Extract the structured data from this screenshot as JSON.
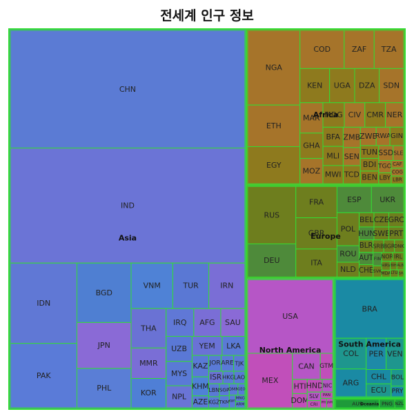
{
  "chart_data": {
    "type": "treemap",
    "title": "전세계 인구 정보",
    "continents": [
      {
        "name": "Asia",
        "color": "#5a78d6",
        "countries": [
          {
            "label": "CHN",
            "value": 1398,
            "color": "#5b7bd4"
          },
          {
            "label": "IND",
            "value": 1366,
            "color": "#6b74d6"
          },
          {
            "label": "IDN",
            "value": 271,
            "color": "#6078d5"
          },
          {
            "label": "PAK",
            "value": 217,
            "color": "#5a7bd8"
          },
          {
            "label": "BGD",
            "value": 163,
            "color": "#4f7fd2"
          },
          {
            "label": "JPN",
            "value": 126,
            "color": "#8a6ad6"
          },
          {
            "label": "PHL",
            "value": 108,
            "color": "#5a7ed6"
          },
          {
            "label": "VNM",
            "value": 96,
            "color": "#4f82d6"
          },
          {
            "label": "TUR",
            "value": 83,
            "color": "#5a78d4"
          },
          {
            "label": "IRN",
            "value": 83,
            "color": "#7a6ed6"
          },
          {
            "label": "THA",
            "value": 70,
            "color": "#6a72d4"
          },
          {
            "label": "KOR",
            "value": 52,
            "color": "#4f7fd6"
          },
          {
            "label": "MMR",
            "value": 54,
            "color": "#7a6ed6"
          },
          {
            "label": "IRQ",
            "value": 39,
            "color": "#6078d6"
          },
          {
            "label": "SAU",
            "value": 34,
            "color": "#8a6ad6"
          },
          {
            "label": "NPL",
            "value": 29,
            "color": "#6a74d6"
          },
          {
            "label": "AFG",
            "value": 38,
            "color": "#7a6ed6"
          },
          {
            "label": "UZB",
            "value": 33,
            "color": "#5a78d6"
          },
          {
            "label": "MYS",
            "value": 32,
            "color": "#5a7ad6"
          },
          {
            "label": "YEM",
            "value": 29,
            "color": "#6a72d6"
          },
          {
            "label": "LKA",
            "value": 22,
            "color": "#5a7ad6"
          },
          {
            "label": "KAZ",
            "value": 18,
            "color": "#5a7ad6"
          },
          {
            "label": "KHM",
            "value": 16,
            "color": "#4f82d6"
          },
          {
            "label": "AZE",
            "value": 10,
            "color": "#5a7ad6"
          },
          {
            "label": "TJK",
            "value": 9,
            "color": "#5a7ad6"
          },
          {
            "label": "ISR",
            "value": 9,
            "color": "#6a72d6"
          },
          {
            "label": "HKG",
            "value": 7,
            "color": "#5a7ad6"
          },
          {
            "label": "LAO",
            "value": 7,
            "color": "#5a7ad6"
          },
          {
            "label": "JOR",
            "value": 10,
            "color": "#5a7ad6"
          },
          {
            "label": "KGZ",
            "value": 6,
            "color": "#5a7ad6"
          },
          {
            "label": "SGP",
            "value": 6,
            "color": "#5a7ad6"
          },
          {
            "label": "GEO",
            "value": 4,
            "color": "#5a7ad6"
          },
          {
            "label": "ARE",
            "value": 10,
            "color": "#5a7ad6"
          },
          {
            "label": "TKM",
            "value": 6,
            "color": "#5a7ad6"
          },
          {
            "label": "LBN",
            "value": 7,
            "color": "#5a7ad6"
          },
          {
            "label": "MNG",
            "value": 3,
            "color": "#5a7ad6"
          },
          {
            "label": "ARM",
            "value": 3,
            "color": "#5a7ad6"
          },
          {
            "label": "OMN",
            "value": 5,
            "color": "#5a7ad6"
          },
          {
            "label": "KWT",
            "value": 4,
            "color": "#5a7ad6"
          }
        ]
      },
      {
        "name": "Europe",
        "color": "#6f8a2a",
        "countries": [
          {
            "label": "RUS",
            "value": 144,
            "color": "#6e7e1e"
          },
          {
            "label": "DEU",
            "value": 83,
            "color": "#4e8a3a"
          },
          {
            "label": "FRA",
            "value": 67,
            "color": "#6e7e1e"
          },
          {
            "label": "GBR",
            "value": 67,
            "color": "#6e7e1e"
          },
          {
            "label": "ITA",
            "value": 60,
            "color": "#6e7e1e"
          },
          {
            "label": "UKR",
            "value": 44,
            "color": "#4e8a3a"
          },
          {
            "label": "ESP",
            "value": 47,
            "color": "#4e8a3a"
          },
          {
            "label": "POL",
            "value": 38,
            "color": "#6e7e1e"
          },
          {
            "label": "ROU",
            "value": 19,
            "color": "#4e8a3a"
          },
          {
            "label": "NLD",
            "value": 17,
            "color": "#6e7e1e"
          },
          {
            "label": "BEL",
            "value": 11,
            "color": "#6e7e1e"
          },
          {
            "label": "CZE",
            "value": 11,
            "color": "#6e7e1e"
          },
          {
            "label": "HUN",
            "value": 10,
            "color": "#4e8a3a"
          },
          {
            "label": "BLR",
            "value": 9,
            "color": "#6e7e1e"
          },
          {
            "label": "SWE",
            "value": 10,
            "color": "#6e7e1e"
          },
          {
            "label": "AUT",
            "value": 9,
            "color": "#4e8a3a"
          },
          {
            "label": "CHE",
            "value": 9,
            "color": "#6e7e1e"
          },
          {
            "label": "DNK",
            "value": 6,
            "color": "#6e7e1e"
          },
          {
            "label": "SVK",
            "value": 5,
            "color": "#6e7e1e"
          },
          {
            "label": "FIN",
            "value": 6,
            "color": "#4e8a3a"
          },
          {
            "label": "NOR",
            "value": 5,
            "color": "#6e7e1e"
          },
          {
            "label": "MDA",
            "value": 3,
            "color": "#6e7e1e"
          },
          {
            "label": "IRL",
            "value": 5,
            "color": "#6e7e1e"
          },
          {
            "label": "SRB",
            "value": 7,
            "color": "#6e7e1e"
          },
          {
            "label": "BIH",
            "value": 3,
            "color": "#6e7e1e"
          },
          {
            "label": "ALB",
            "value": 3,
            "color": "#6e7e1e"
          },
          {
            "label": "LTU",
            "value": 3,
            "color": "#6e7e1e"
          },
          {
            "label": "BGR",
            "value": 7,
            "color": "#6e7e1e"
          },
          {
            "label": "HRV",
            "value": 4,
            "color": "#6e7e1e"
          },
          {
            "label": "LVA",
            "value": 2,
            "color": "#6e7e1e"
          },
          {
            "label": "GRC",
            "value": 11,
            "color": "#6e7e1e"
          },
          {
            "label": "PRT",
            "value": 10,
            "color": "#6e7e1e"
          }
        ]
      },
      {
        "name": "North America",
        "color": "#b656c6",
        "countries": [
          {
            "label": "USA",
            "value": 328,
            "color": "#b656c6"
          },
          {
            "label": "MEX",
            "value": 128,
            "color": "#c14fba"
          },
          {
            "label": "CAN",
            "value": 38,
            "color": "#b656c6"
          },
          {
            "label": "GTM",
            "value": 17,
            "color": "#c14fba"
          },
          {
            "label": "HTI",
            "value": 11,
            "color": "#c14fba"
          },
          {
            "label": "SLV",
            "value": 6,
            "color": "#b656c6"
          },
          {
            "label": "CRI",
            "value": 5,
            "color": "#c14fba"
          },
          {
            "label": "PRI",
            "value": 3,
            "color": "#c14fba"
          },
          {
            "label": "DOM",
            "value": 11,
            "color": "#c14fba"
          },
          {
            "label": "HND",
            "value": 10,
            "color": "#c14fba"
          },
          {
            "label": "NIC",
            "value": 7,
            "color": "#b656c6"
          },
          {
            "label": "PAN",
            "value": 4,
            "color": "#c14fba"
          },
          {
            "label": "JAM",
            "value": 3,
            "color": "#c14fba"
          }
        ]
      },
      {
        "name": "Africa",
        "color": "#a6742a",
        "countries": [
          {
            "label": "NGA",
            "value": 201,
            "color": "#a6742a"
          },
          {
            "label": "ETH",
            "value": 112,
            "color": "#a6742a"
          },
          {
            "label": "EGY",
            "value": 100,
            "color": "#8e7a1e"
          },
          {
            "label": "COD",
            "value": 87,
            "color": "#a6742a"
          },
          {
            "label": "ZAF",
            "value": 59,
            "color": "#a6742a"
          },
          {
            "label": "TZA",
            "value": 58,
            "color": "#a6742a"
          },
          {
            "label": "KEN",
            "value": 52,
            "color": "#8e7a1e"
          },
          {
            "label": "MAR",
            "value": 36,
            "color": "#a6742a"
          },
          {
            "label": "DZA",
            "value": 43,
            "color": "#8e7a1e"
          },
          {
            "label": "UGA",
            "value": 44,
            "color": "#8e7a1e"
          },
          {
            "label": "SDN",
            "value": 43,
            "color": "#a6742a"
          },
          {
            "label": "GHA",
            "value": 30,
            "color": "#8e7a1e"
          },
          {
            "label": "MOZ",
            "value": 30,
            "color": "#a6742a"
          },
          {
            "label": "MDG",
            "value": 27,
            "color": "#8e7a1e"
          },
          {
            "label": "CIV",
            "value": 26,
            "color": "#a6742a"
          },
          {
            "label": "CMR",
            "value": 26,
            "color": "#8e7a1e"
          },
          {
            "label": "BFA",
            "value": 20,
            "color": "#8e7a1e"
          },
          {
            "label": "NER",
            "value": 23,
            "color": "#a6742a"
          },
          {
            "label": "MWI",
            "value": 19,
            "color": "#8e7a1e"
          },
          {
            "label": "SEN",
            "value": 16,
            "color": "#a6742a"
          },
          {
            "label": "MLI",
            "value": 20,
            "color": "#8e7a1e"
          },
          {
            "label": "ZWE",
            "value": 15,
            "color": "#a6742a"
          },
          {
            "label": "TUN",
            "value": 12,
            "color": "#8e7a1e"
          },
          {
            "label": "RWA",
            "value": 13,
            "color": "#a6742a"
          },
          {
            "label": "TCD",
            "value": 16,
            "color": "#8e7a1e"
          },
          {
            "label": "ZMB",
            "value": 18,
            "color": "#a6742a"
          },
          {
            "label": "GIN",
            "value": 13,
            "color": "#8e7a1e"
          },
          {
            "label": "SLE",
            "value": 8,
            "color": "#a6742a"
          },
          {
            "label": "LBY",
            "value": 7,
            "color": "#8e7a1e"
          },
          {
            "label": "TGO",
            "value": 8,
            "color": "#a6742a"
          },
          {
            "label": "SSD",
            "value": 11,
            "color": "#a6742a"
          },
          {
            "label": "BDI",
            "value": 12,
            "color": "#8e7a1e"
          },
          {
            "label": "CAF",
            "value": 5,
            "color": "#a6742a"
          },
          {
            "label": "BEN",
            "value": 12,
            "color": "#8e7a1e"
          },
          {
            "label": "COG",
            "value": 5,
            "color": "#a6742a"
          },
          {
            "label": "LBR",
            "value": 5,
            "color": "#8e7a1e"
          }
        ]
      },
      {
        "name": "South America",
        "color": "#1a8aa4",
        "countries": [
          {
            "label": "BRA",
            "value": 211,
            "color": "#1a8aa4"
          },
          {
            "label": "COL",
            "value": 50,
            "color": "#1e968e"
          },
          {
            "label": "ARG",
            "value": 45,
            "color": "#1a8aa4"
          },
          {
            "label": "PER",
            "value": 33,
            "color": "#1e8aa8"
          },
          {
            "label": "VEN",
            "value": 29,
            "color": "#1e968e"
          },
          {
            "label": "CHL",
            "value": 19,
            "color": "#1a8aa4"
          },
          {
            "label": "ECU",
            "value": 17,
            "color": "#1e968e"
          },
          {
            "label": "BOL",
            "value": 11,
            "color": "#1e968e"
          },
          {
            "label": "PRY",
            "value": 7,
            "color": "#1a8aa4"
          }
        ]
      },
      {
        "name": "Oceania",
        "color": "#1e9a3a",
        "countries": [
          {
            "label": "AUS",
            "value": 25,
            "color": "#1e9a3a"
          },
          {
            "label": "PNG",
            "value": 9,
            "color": "#1e9a3a"
          },
          {
            "label": "NZL",
            "value": 5,
            "color": "#1e9a3a"
          }
        ]
      }
    ]
  }
}
